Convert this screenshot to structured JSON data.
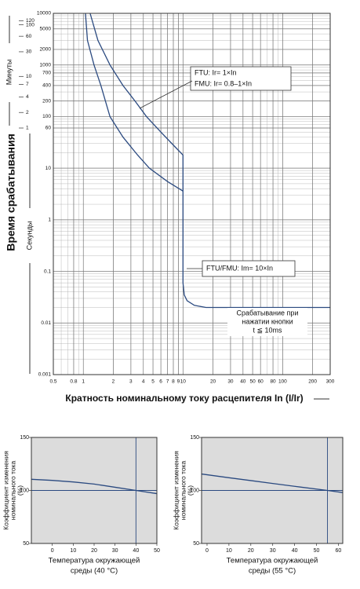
{
  "chart_data": [
    {
      "type": "line",
      "xscale": "log",
      "yscale": "log",
      "ylabel": "Время срабатывания",
      "ylabel_minutes": "Минуты",
      "ylabel_seconds": "Секунды",
      "xlabel": "Кратность номинальному току расцепителя In (I/Ir)",
      "xlim": [
        0.5,
        300
      ],
      "ylim": [
        0.001,
        10000
      ],
      "xticks": [
        0.5,
        0.8,
        1,
        2,
        3,
        4,
        5,
        6,
        7,
        8,
        9,
        10,
        20,
        30,
        40,
        50,
        60,
        80,
        100,
        200,
        300
      ],
      "yticks": [
        0.001,
        0.01,
        0.1,
        1,
        10,
        60,
        100,
        200,
        400,
        700,
        1000,
        2000,
        5000,
        10000
      ],
      "minute_ticks": [
        {
          "value": 7200,
          "label": "120"
        },
        {
          "value": 6000,
          "label": "100"
        },
        {
          "value": 3600,
          "label": "60"
        },
        {
          "value": 1800,
          "label": "30"
        },
        {
          "value": 600,
          "label": "10"
        },
        {
          "value": 420,
          "label": "7"
        },
        {
          "value": 240,
          "label": "4"
        },
        {
          "value": 120,
          "label": "2"
        },
        {
          "value": 60,
          "label": "1"
        }
      ],
      "grid": true,
      "series": [
        {
          "color": "#2b4a80",
          "x": [
            1.17,
            1.4,
            1.85,
            2.5,
            3.3,
            4.3,
            6,
            8,
            10,
            10,
            10.3,
            11,
            13,
            17,
            25,
            300
          ],
          "values": [
            10000,
            3000,
            1000,
            400,
            200,
            100,
            50,
            28,
            18,
            0.06,
            0.035,
            0.027,
            0.022,
            0.02,
            0.02,
            0.02
          ]
        },
        {
          "color": "#2b4a80",
          "x": [
            1.05,
            1.1,
            1.28,
            1.5,
            1.85,
            2.5,
            3.5,
            4.6,
            7,
            10
          ],
          "values": [
            10000,
            3000,
            1000,
            400,
            100,
            40,
            18,
            10,
            5.5,
            3.6
          ]
        }
      ],
      "annotations": [
        "FTU: Ir= 1×In",
        "FMU: Ir= 0.8–1×In",
        "FTU/FMU: Im= 10×In",
        "Срабатывание при",
        "нажатии кнопки",
        "t ≦ 10ms"
      ]
    },
    {
      "type": "line",
      "xscale": "linear",
      "yscale": "linear",
      "ylabel": [
        "Коэффициент изменения",
        "номинального тока",
        "(%)"
      ],
      "xlabel": [
        "Температура окружающей",
        "среды (40 °C)"
      ],
      "xlim": [
        -10,
        50
      ],
      "ylim": [
        50,
        150
      ],
      "xticks": [
        0,
        10,
        20,
        30,
        40,
        50
      ],
      "yticks": [
        50,
        100,
        150
      ],
      "ref_x": 40,
      "ref_y": 100,
      "series": [
        {
          "color": "#2b4a80",
          "x": [
            -10,
            0,
            10,
            20,
            30,
            40,
            50
          ],
          "values": [
            110.5,
            109.5,
            108,
            106,
            103,
            100,
            97
          ]
        }
      ]
    },
    {
      "type": "line",
      "xscale": "linear",
      "yscale": "linear",
      "ylabel": [
        "Коэффициент изменения",
        "номинального тока",
        "(%)"
      ],
      "xlabel": [
        "Температура окружающей",
        "среды (55 °C)"
      ],
      "xlim": [
        -2.5,
        62
      ],
      "ylim": [
        50,
        150
      ],
      "xticks": [
        0,
        10,
        20,
        30,
        40,
        50,
        60
      ],
      "yticks": [
        50,
        100,
        150
      ],
      "ref_x": 55,
      "ref_y": 100,
      "series": [
        {
          "color": "#2b4a80",
          "x": [
            -2.5,
            10,
            20,
            30,
            40,
            55,
            62
          ],
          "values": [
            115.5,
            112,
            109.3,
            106.6,
            103.9,
            100,
            98
          ]
        }
      ]
    }
  ]
}
